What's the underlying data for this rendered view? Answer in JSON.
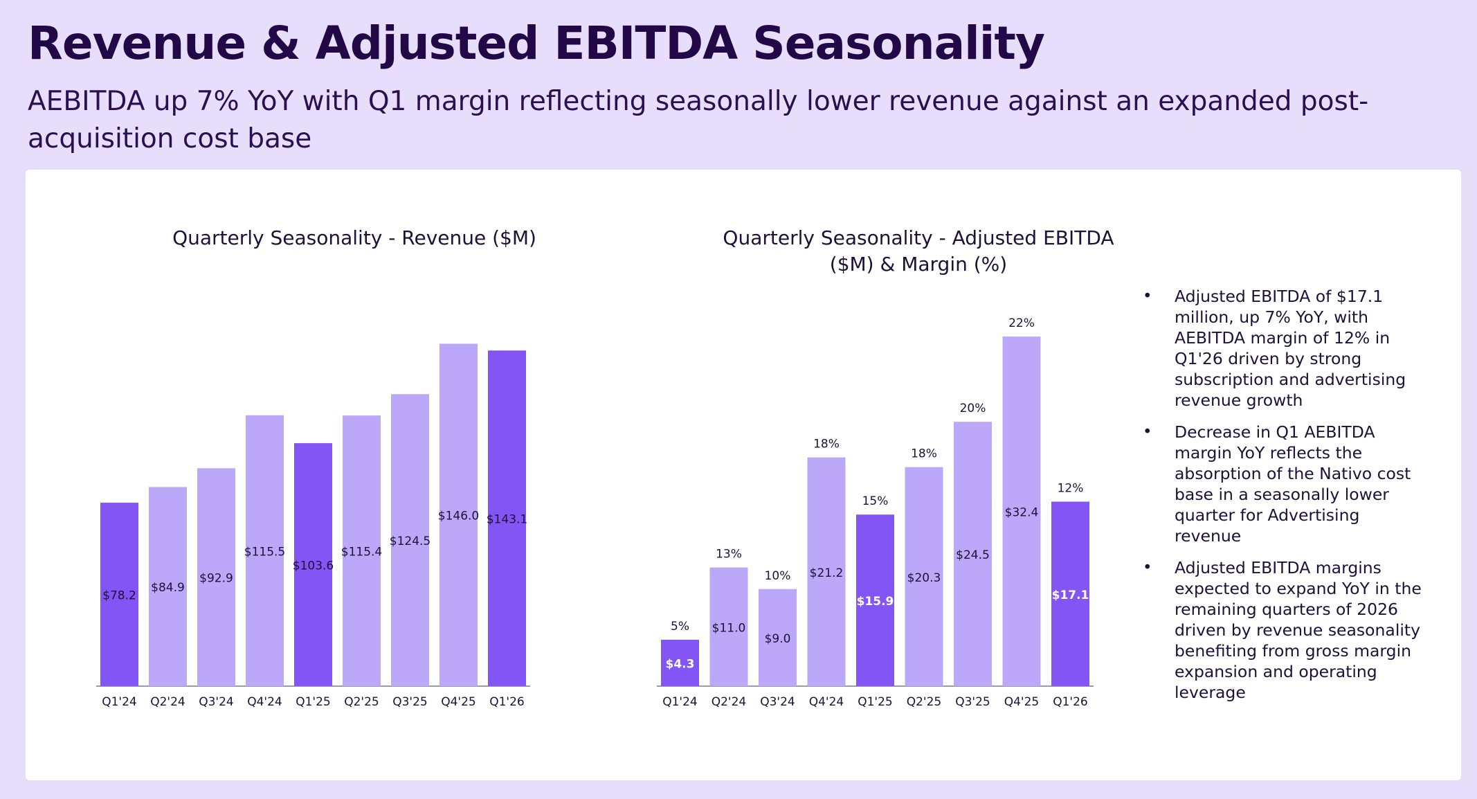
{
  "title": "Revenue & Adjusted EBITDA Seasonality",
  "subtitle": "AEBITDA up 7% YoY with Q1 margin reflecting seasonally lower revenue against an expanded post-acquisition cost base",
  "colors": {
    "background": "#e6defa",
    "panel": "#ffffff",
    "q1_bar": "#8355f5",
    "other_bar": "#bba8f8",
    "title": "#230848"
  },
  "bullets": [
    "Adjusted EBITDA of $17.1 million, up 7% YoY, with AEBITDA margin of 12% in Q1'26 driven by strong subscription and advertising revenue growth",
    "Decrease in Q1 AEBITDA margin YoY reflects the absorption of the Nativo cost base in a seasonally lower quarter for Advertising revenue",
    "Adjusted EBITDA margins expected to expand YoY in the remaining quarters of 2026 driven by revenue seasonality benefiting from gross margin expansion and operating leverage"
  ],
  "chart_data": [
    {
      "type": "bar",
      "title": "Quarterly Seasonality - Revenue ($M)",
      "categories": [
        "Q1'24",
        "Q2'24",
        "Q3'24",
        "Q4'24",
        "Q1'25",
        "Q2'25",
        "Q3'25",
        "Q4'25",
        "Q1'26"
      ],
      "values": [
        78.2,
        84.9,
        92.9,
        115.5,
        103.6,
        115.4,
        124.5,
        146.0,
        143.1
      ],
      "value_labels": [
        "$78.2",
        "$84.9",
        "$92.9",
        "$115.5",
        "$103.6",
        "$115.4",
        "$124.5",
        "$146.0",
        "$143.1"
      ],
      "highlight": [
        true,
        false,
        false,
        false,
        true,
        false,
        false,
        false,
        true
      ],
      "ylim": [
        0,
        160
      ],
      "grid": false,
      "legend": "none"
    },
    {
      "type": "bar",
      "title": "Quarterly Seasonality - Adjusted EBITDA ($M) & Margin (%)",
      "categories": [
        "Q1'24",
        "Q2'24",
        "Q3'24",
        "Q4'24",
        "Q1'25",
        "Q2'25",
        "Q3'25",
        "Q4'25",
        "Q1'26"
      ],
      "values": [
        4.3,
        11.0,
        9.0,
        21.2,
        15.9,
        20.3,
        24.5,
        32.4,
        17.1
      ],
      "value_labels": [
        "$4.3",
        "$11.0",
        "$9.0",
        "$21.2",
        "$15.9",
        "$20.3",
        "$24.5",
        "$32.4",
        "$17.1"
      ],
      "margins": [
        "5%",
        "13%",
        "10%",
        "18%",
        "15%",
        "18%",
        "20%",
        "22%",
        "12%"
      ],
      "highlight": [
        true,
        false,
        false,
        false,
        true,
        false,
        false,
        false,
        true
      ],
      "ylim": [
        0,
        36
      ],
      "grid": false,
      "legend": "none"
    }
  ]
}
